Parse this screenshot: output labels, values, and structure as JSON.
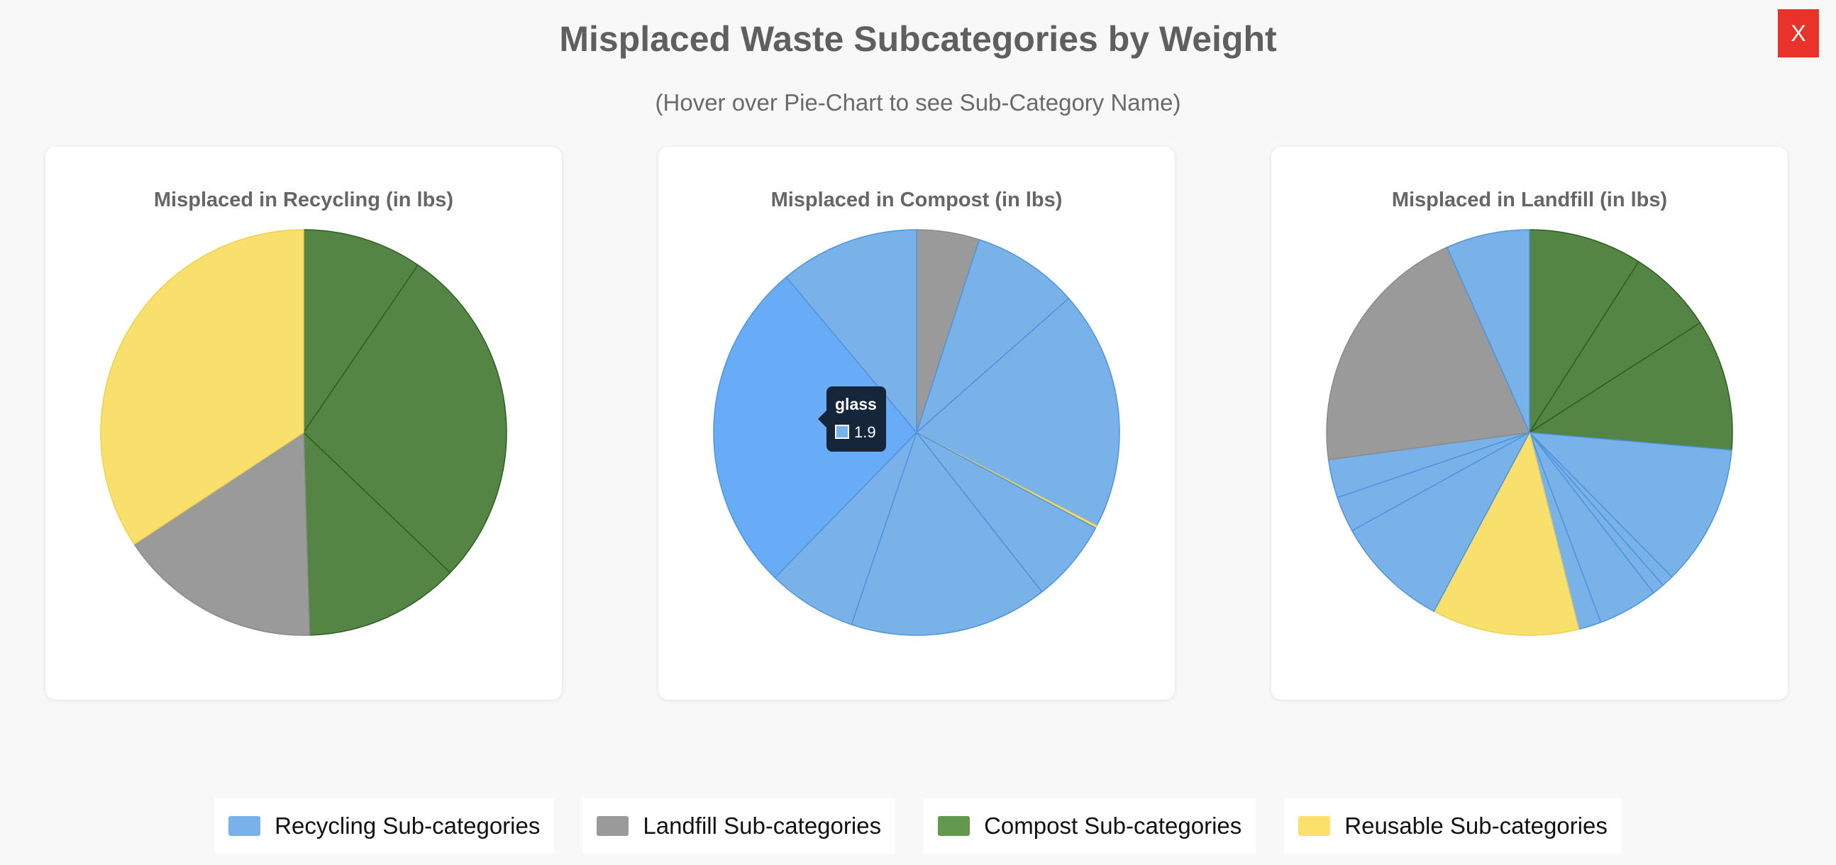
{
  "header": {
    "title": "Misplaced Waste Subcategories by Weight",
    "subtitle": "(Hover over Pie-Chart to see Sub-Category Name)",
    "close_label": "X"
  },
  "colors": {
    "recycling": "#79b2e8",
    "recycling_highlight": "#68abf7",
    "landfill": "#9a9a9a",
    "compost": "#548544",
    "reusable": "#f9e06d"
  },
  "tooltip": {
    "title": "glass",
    "value": "1.9",
    "category": "recycling"
  },
  "legend": [
    {
      "label": "Recycling Sub-categories",
      "category": "recycling",
      "swatch": "#79b2e8"
    },
    {
      "label": "Landfill Sub-categories",
      "category": "landfill",
      "swatch": "#9a9a9a"
    },
    {
      "label": "Compost Sub-categories",
      "category": "compost",
      "swatch": "#63994f"
    },
    {
      "label": "Reusable Sub-categories",
      "category": "reusable",
      "swatch": "#fbe06c"
    }
  ],
  "chart_data": [
    {
      "type": "pie",
      "title": "Misplaced in Recycling (in lbs)",
      "values": [
        10,
        29,
        13,
        17,
        36
      ],
      "categories": [
        "compost",
        "compost",
        "compost",
        "landfill",
        "reusable"
      ]
    },
    {
      "type": "pie",
      "title": "Misplaced in Compost (in lbs)",
      "values": [
        5,
        8.5,
        19.1,
        0.2,
        6.6,
        15.8,
        7.1,
        26.6,
        11.1
      ],
      "categories": [
        "landfill",
        "recycling",
        "recycling",
        "reusable",
        "recycling",
        "recycling",
        "recycling",
        "recycling",
        "recycling"
      ],
      "highlight_index": 7
    },
    {
      "type": "pie",
      "title": "Misplaced in Landfill (in lbs)",
      "values": [
        9.5,
        7.2,
        11,
        11.8,
        1,
        1,
        5,
        1.9,
        12.3,
        9.6,
        3,
        3.2,
        21.5,
        7
      ],
      "categories": [
        "compost",
        "compost",
        "compost",
        "recycling",
        "recycling",
        "recycling",
        "recycling",
        "recycling",
        "reusable",
        "recycling",
        "recycling",
        "recycling",
        "landfill",
        "recycling"
      ]
    }
  ]
}
